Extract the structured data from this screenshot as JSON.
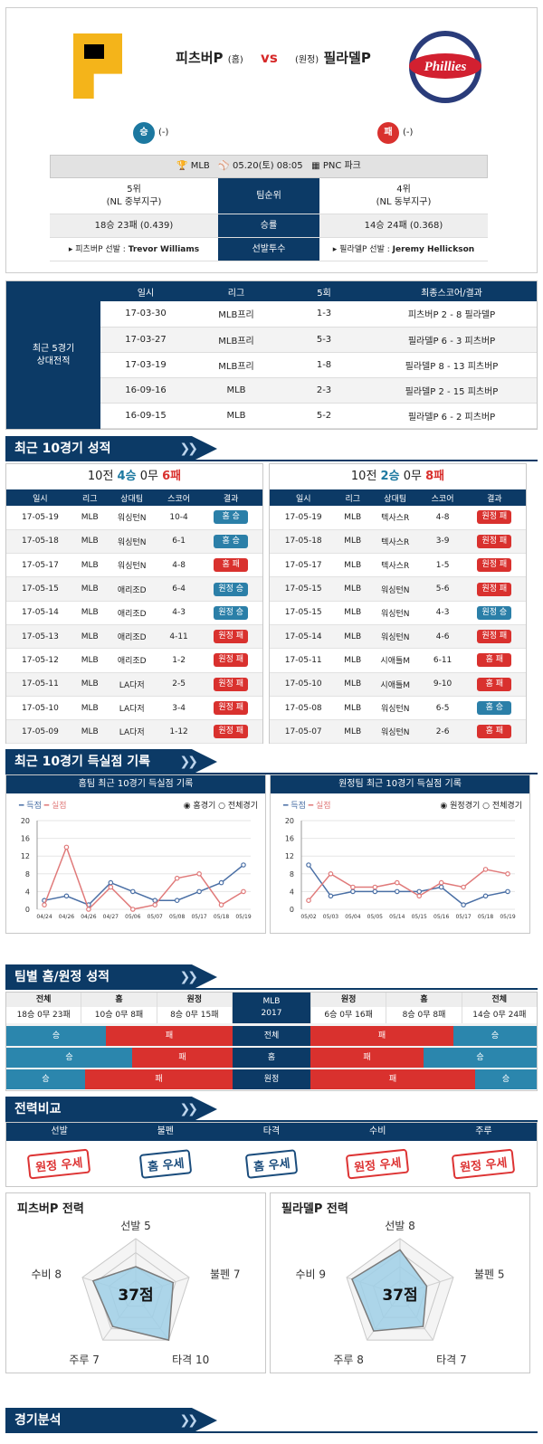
{
  "match": {
    "home_name": "피츠버P",
    "home_tag": "(홈)",
    "vs": "vs",
    "away_tag": "(원정)",
    "away_name": "필라델P",
    "home_result": "승",
    "home_result_note": "(-)",
    "away_result": "패",
    "away_result_note": "(-)",
    "league": "MLB",
    "datetime": "05.20(토) 08:05",
    "venue": "PNC 파크",
    "home_rank": "5위",
    "home_division": "(NL 중부지구)",
    "rank_label": "팀순위",
    "away_rank": "4위",
    "away_division": "(NL 동부지구)",
    "home_record": "18승 23패 (0.439)",
    "record_label": "승률",
    "away_record": "14승 24패 (0.368)",
    "home_pitcher_prefix": "▸ 피츠버P 선발 :",
    "home_pitcher": "Trevor Williams",
    "pitcher_label": "선발투수",
    "away_pitcher_prefix": "▸ 필라델P 선발 :",
    "away_pitcher": "Jeremy Hellickson",
    "home_logo_letter": "P",
    "away_logo_text": "Phillies"
  },
  "h2h": {
    "side_label": "최근 5경기\n상대전적",
    "headers": [
      "일시",
      "리그",
      "5회",
      "최종스코어/결과"
    ],
    "rows": [
      [
        "17-03-30",
        "MLB프리",
        "1-3",
        "피츠버P 2 - 8 필라델P"
      ],
      [
        "17-03-27",
        "MLB프리",
        "5-3",
        "필라델P 6 - 3 피츠버P"
      ],
      [
        "17-03-19",
        "MLB프리",
        "1-8",
        "필라델P 8 - 13 피츠버P"
      ],
      [
        "16-09-16",
        "MLB",
        "2-3",
        "필라델P 2 - 15 피츠버P"
      ],
      [
        "16-09-15",
        "MLB",
        "5-2",
        "필라델P 6 - 2 피츠버P"
      ]
    ]
  },
  "recent": {
    "title": "최근 10경기 성적",
    "home_summary_a": "10전 ",
    "home_w": "4승",
    "home_d": "0무",
    "home_l": "6패",
    "away_summary_a": "10전 ",
    "away_w": "2승",
    "away_d": "0무",
    "away_l": "8패",
    "headers": [
      "일시",
      "리그",
      "상대팀",
      "스코어",
      "결과"
    ],
    "home_rows": [
      [
        "17-05-19",
        "MLB",
        "워싱턴N",
        "10-4",
        "홈 승"
      ],
      [
        "17-05-18",
        "MLB",
        "워싱턴N",
        "6-1",
        "홈 승"
      ],
      [
        "17-05-17",
        "MLB",
        "워싱턴N",
        "4-8",
        "홈 패"
      ],
      [
        "17-05-15",
        "MLB",
        "애리조D",
        "6-4",
        "원정 승"
      ],
      [
        "17-05-14",
        "MLB",
        "애리조D",
        "4-3",
        "원정 승"
      ],
      [
        "17-05-13",
        "MLB",
        "애리조D",
        "4-11",
        "원정 패"
      ],
      [
        "17-05-12",
        "MLB",
        "애리조D",
        "1-2",
        "원정 패"
      ],
      [
        "17-05-11",
        "MLB",
        "LA다저",
        "2-5",
        "원정 패"
      ],
      [
        "17-05-10",
        "MLB",
        "LA다저",
        "3-4",
        "원정 패"
      ],
      [
        "17-05-09",
        "MLB",
        "LA다저",
        "1-12",
        "원정 패"
      ]
    ],
    "away_rows": [
      [
        "17-05-19",
        "MLB",
        "텍사스R",
        "4-8",
        "원정 패"
      ],
      [
        "17-05-18",
        "MLB",
        "텍사스R",
        "3-9",
        "원정 패"
      ],
      [
        "17-05-17",
        "MLB",
        "텍사스R",
        "1-5",
        "원정 패"
      ],
      [
        "17-05-15",
        "MLB",
        "워싱턴N",
        "5-6",
        "원정 패"
      ],
      [
        "17-05-15",
        "MLB",
        "워싱턴N",
        "4-3",
        "원정 승"
      ],
      [
        "17-05-14",
        "MLB",
        "워싱턴N",
        "4-6",
        "원정 패"
      ],
      [
        "17-05-11",
        "MLB",
        "시애틀M",
        "6-11",
        "홈 패"
      ],
      [
        "17-05-10",
        "MLB",
        "시애틀M",
        "9-10",
        "홈 패"
      ],
      [
        "17-05-08",
        "MLB",
        "워싱턴N",
        "6-5",
        "홈 승"
      ],
      [
        "17-05-07",
        "MLB",
        "워싱턴N",
        "2-6",
        "홈 패"
      ]
    ]
  },
  "scoring": {
    "title": "최근 10경기 득실점 기록",
    "home_title": "홈팀 최근 10경기 득실점 기록",
    "away_title": "원정팀 최근 10경기 득실점 기록",
    "legend_for": "득점",
    "legend_against": "실점",
    "home_opt1": "홈경기",
    "home_opt2": "전체경기",
    "away_opt1": "원정경기",
    "away_opt2": "전체경기"
  },
  "chart_data": [
    {
      "type": "line",
      "title": "홈팀 최근 10경기 득실점 기록",
      "ylim": [
        0,
        20
      ],
      "yticks": [
        0,
        4,
        8,
        12,
        16,
        20
      ],
      "categories": [
        "04/24",
        "04/26",
        "04/26",
        "04/27",
        "05/06",
        "05/07",
        "05/08",
        "05/17",
        "05/18",
        "05/19"
      ],
      "series": [
        {
          "name": "득점",
          "color": "#4a6fa5",
          "values": [
            2,
            3,
            1,
            6,
            4,
            2,
            2,
            4,
            6,
            10
          ]
        },
        {
          "name": "실점",
          "color": "#e07a7a",
          "values": [
            1,
            14,
            0,
            5,
            0,
            1,
            7,
            8,
            1,
            4
          ]
        }
      ]
    },
    {
      "type": "line",
      "title": "원정팀 최근 10경기 득실점 기록",
      "ylim": [
        0,
        20
      ],
      "yticks": [
        0,
        4,
        8,
        12,
        16,
        20
      ],
      "categories": [
        "05/02",
        "05/03",
        "05/04",
        "05/05",
        "05/14",
        "05/15",
        "05/16",
        "05/17",
        "05/18",
        "05/19"
      ],
      "series": [
        {
          "name": "득점",
          "color": "#4a6fa5",
          "values": [
            10,
            3,
            4,
            4,
            4,
            4,
            5,
            1,
            3,
            4
          ]
        },
        {
          "name": "실점",
          "color": "#e07a7a",
          "values": [
            2,
            8,
            5,
            5,
            6,
            3,
            6,
            5,
            9,
            8
          ]
        }
      ]
    }
  ],
  "homeaway": {
    "title": "팀별 홈/원정 성적",
    "left_headers": [
      "전체",
      "홈",
      "원정"
    ],
    "left_values": [
      "18승 0무 23패",
      "10승 0무 8패",
      "8승 0무 15패"
    ],
    "center_top": "MLB",
    "center_year": "2017",
    "right_headers": [
      "원정",
      "홈",
      "전체"
    ],
    "right_values": [
      "6승 0무 16패",
      "8승 0무 8패",
      "14승 0무 24패"
    ],
    "bars": [
      {
        "label": "전체",
        "l_win": "승",
        "l_loss": "패",
        "l_win_frac": 0.439,
        "r_loss": "패",
        "r_win": "승",
        "r_win_frac": 0.368
      },
      {
        "label": "홈",
        "l_win": "승",
        "l_loss": "패",
        "l_win_frac": 0.556,
        "r_loss": "패",
        "r_win": "승",
        "r_win_frac": 0.5
      },
      {
        "label": "원정",
        "l_win": "승",
        "l_loss": "패",
        "l_win_frac": 0.348,
        "r_loss": "패",
        "r_win": "승",
        "r_win_frac": 0.273
      }
    ]
  },
  "compare": {
    "title": "전력비교",
    "headers": [
      "선발",
      "불펜",
      "타격",
      "수비",
      "주루"
    ],
    "stamps": [
      {
        "text": "원정 우세",
        "color": "red"
      },
      {
        "text": "홈 우세",
        "color": "blue"
      },
      {
        "text": "홈 우세",
        "color": "blue"
      },
      {
        "text": "원정 우세",
        "color": "red"
      },
      {
        "text": "원정 우세",
        "color": "red"
      }
    ]
  },
  "radar": {
    "home_title": "피츠버P 전력",
    "away_title": "필라델P 전력",
    "home": {
      "score": "37점",
      "labels": [
        "선발 5",
        "불펜 7",
        "타격 10",
        "주루 7",
        "수비 8"
      ],
      "values": [
        5,
        7,
        10,
        7,
        8
      ]
    },
    "away": {
      "score": "37점",
      "labels": [
        "선발 8",
        "불펜 5",
        "타격 7",
        "주루 8",
        "수비 9"
      ],
      "values": [
        8,
        5,
        7,
        8,
        9
      ]
    }
  },
  "analysis": {
    "title": "경기분석"
  }
}
